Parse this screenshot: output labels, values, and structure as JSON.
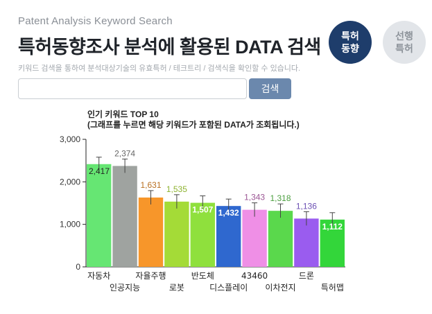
{
  "header": {
    "subtitle": "Patent Analysis Keyword Search",
    "title": "특허동향조사 분석에 활용된 DATA 검색",
    "description": "키워드 검색을 통하여 분석대상기술의 유효특허 / 테크트리 / 검색식을 확인할 수 있습니다."
  },
  "nav": {
    "active": {
      "line1": "특허",
      "line2": "동향"
    },
    "inactive": {
      "line1": "선행",
      "line2": "특허"
    }
  },
  "search": {
    "value": "",
    "placeholder": "",
    "button_label": "검색"
  },
  "chart_title": {
    "line1": "인기 키워드 TOP 10",
    "line2": "(그래프를 누르면 해당 키워드가 포함된 DATA가 조회됩니다.)"
  },
  "chart_data": {
    "type": "bar",
    "title": "인기 키워드 TOP 10",
    "subtitle": "(그래프를 누르면 해당 키워드가 포함된 DATA가 조회됩니다.)",
    "categories": [
      "자동차",
      "인공지능",
      "자율주행",
      "로봇",
      "반도체",
      "디스플레이",
      "43460",
      "이차전지",
      "드론",
      "특허맵"
    ],
    "values": [
      2417,
      2374,
      1631,
      1535,
      1507,
      1432,
      1343,
      1318,
      1136,
      1112
    ],
    "value_labels": [
      "2,417",
      "2,374",
      "1,631",
      "1,535",
      "1,507",
      "1,432",
      "1,343",
      "1,318",
      "1,136",
      "1,112"
    ],
    "colors": [
      "#66e673",
      "#9fa3a0",
      "#f7962a",
      "#a4db37",
      "#8fe03d",
      "#2f68cf",
      "#ef8fe6",
      "#5ad84c",
      "#9a5cef",
      "#33d63a"
    ],
    "label_colors": [
      "#222222",
      "#666666",
      "#b86f20",
      "#8db22f",
      "#ffffff",
      "#ffffff",
      "#9b5594",
      "#4a9e3e",
      "#6b4fb3",
      "#ffffff"
    ],
    "y_ticks": [
      "0",
      "1,000",
      "2,000",
      "3,000"
    ],
    "ylim": [
      0,
      3000
    ],
    "xlabel": "",
    "ylabel": "",
    "grid": false,
    "legend": "none"
  }
}
